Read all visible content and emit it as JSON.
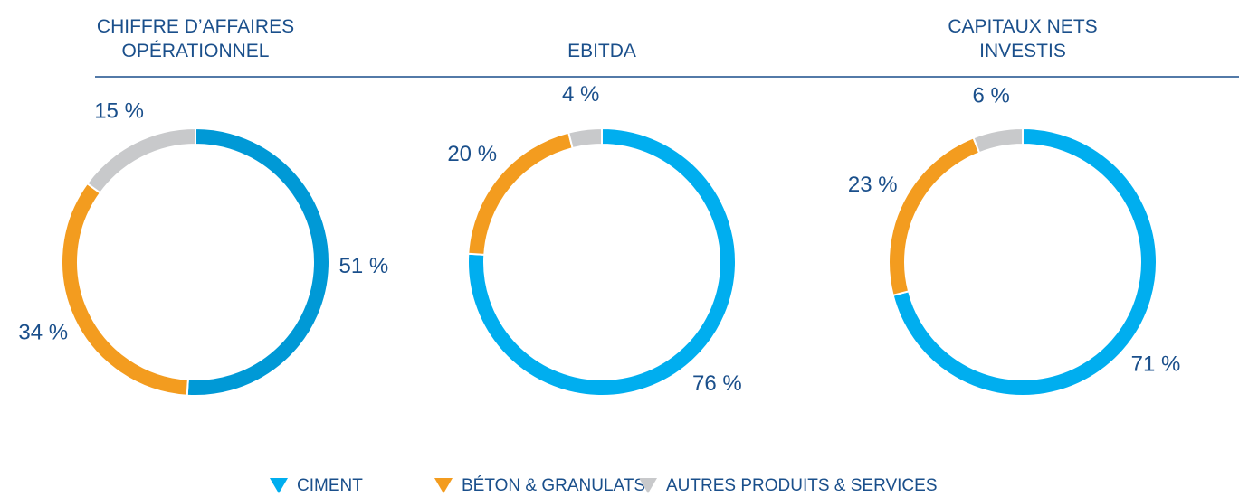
{
  "chart_data": [
    {
      "type": "pie",
      "title": "CHIFFRE D’AFFAIRES OPÉRATIONNEL",
      "values": [
        51,
        34,
        15
      ],
      "value_labels": [
        "51 %",
        "34 %",
        "15 %"
      ],
      "colors": [
        "#0099d6",
        "#f39c1f",
        "#c8c9cb"
      ]
    },
    {
      "type": "pie",
      "title": "EBITDA",
      "values": [
        76,
        20,
        4
      ],
      "value_labels": [
        "76 %",
        "20 %",
        "4 %"
      ],
      "colors": [
        "#00aeef",
        "#f39c1f",
        "#c8c9cb"
      ]
    },
    {
      "type": "pie",
      "title": "CAPITAUX NETS INVESTIS",
      "values": [
        71,
        23,
        6
      ],
      "value_labels": [
        "71 %",
        "23 %",
        "6 %"
      ],
      "colors": [
        "#00aeef",
        "#f39c1f",
        "#c8c9cb"
      ]
    }
  ],
  "legend": [
    {
      "name": "CIMENT",
      "color": "#00aeef"
    },
    {
      "name": "BÉTON & GRANULATS",
      "color": "#f39c1f"
    },
    {
      "name": "AUTRES PRODUITS & SERVICES",
      "color": "#c8c9cb"
    }
  ]
}
